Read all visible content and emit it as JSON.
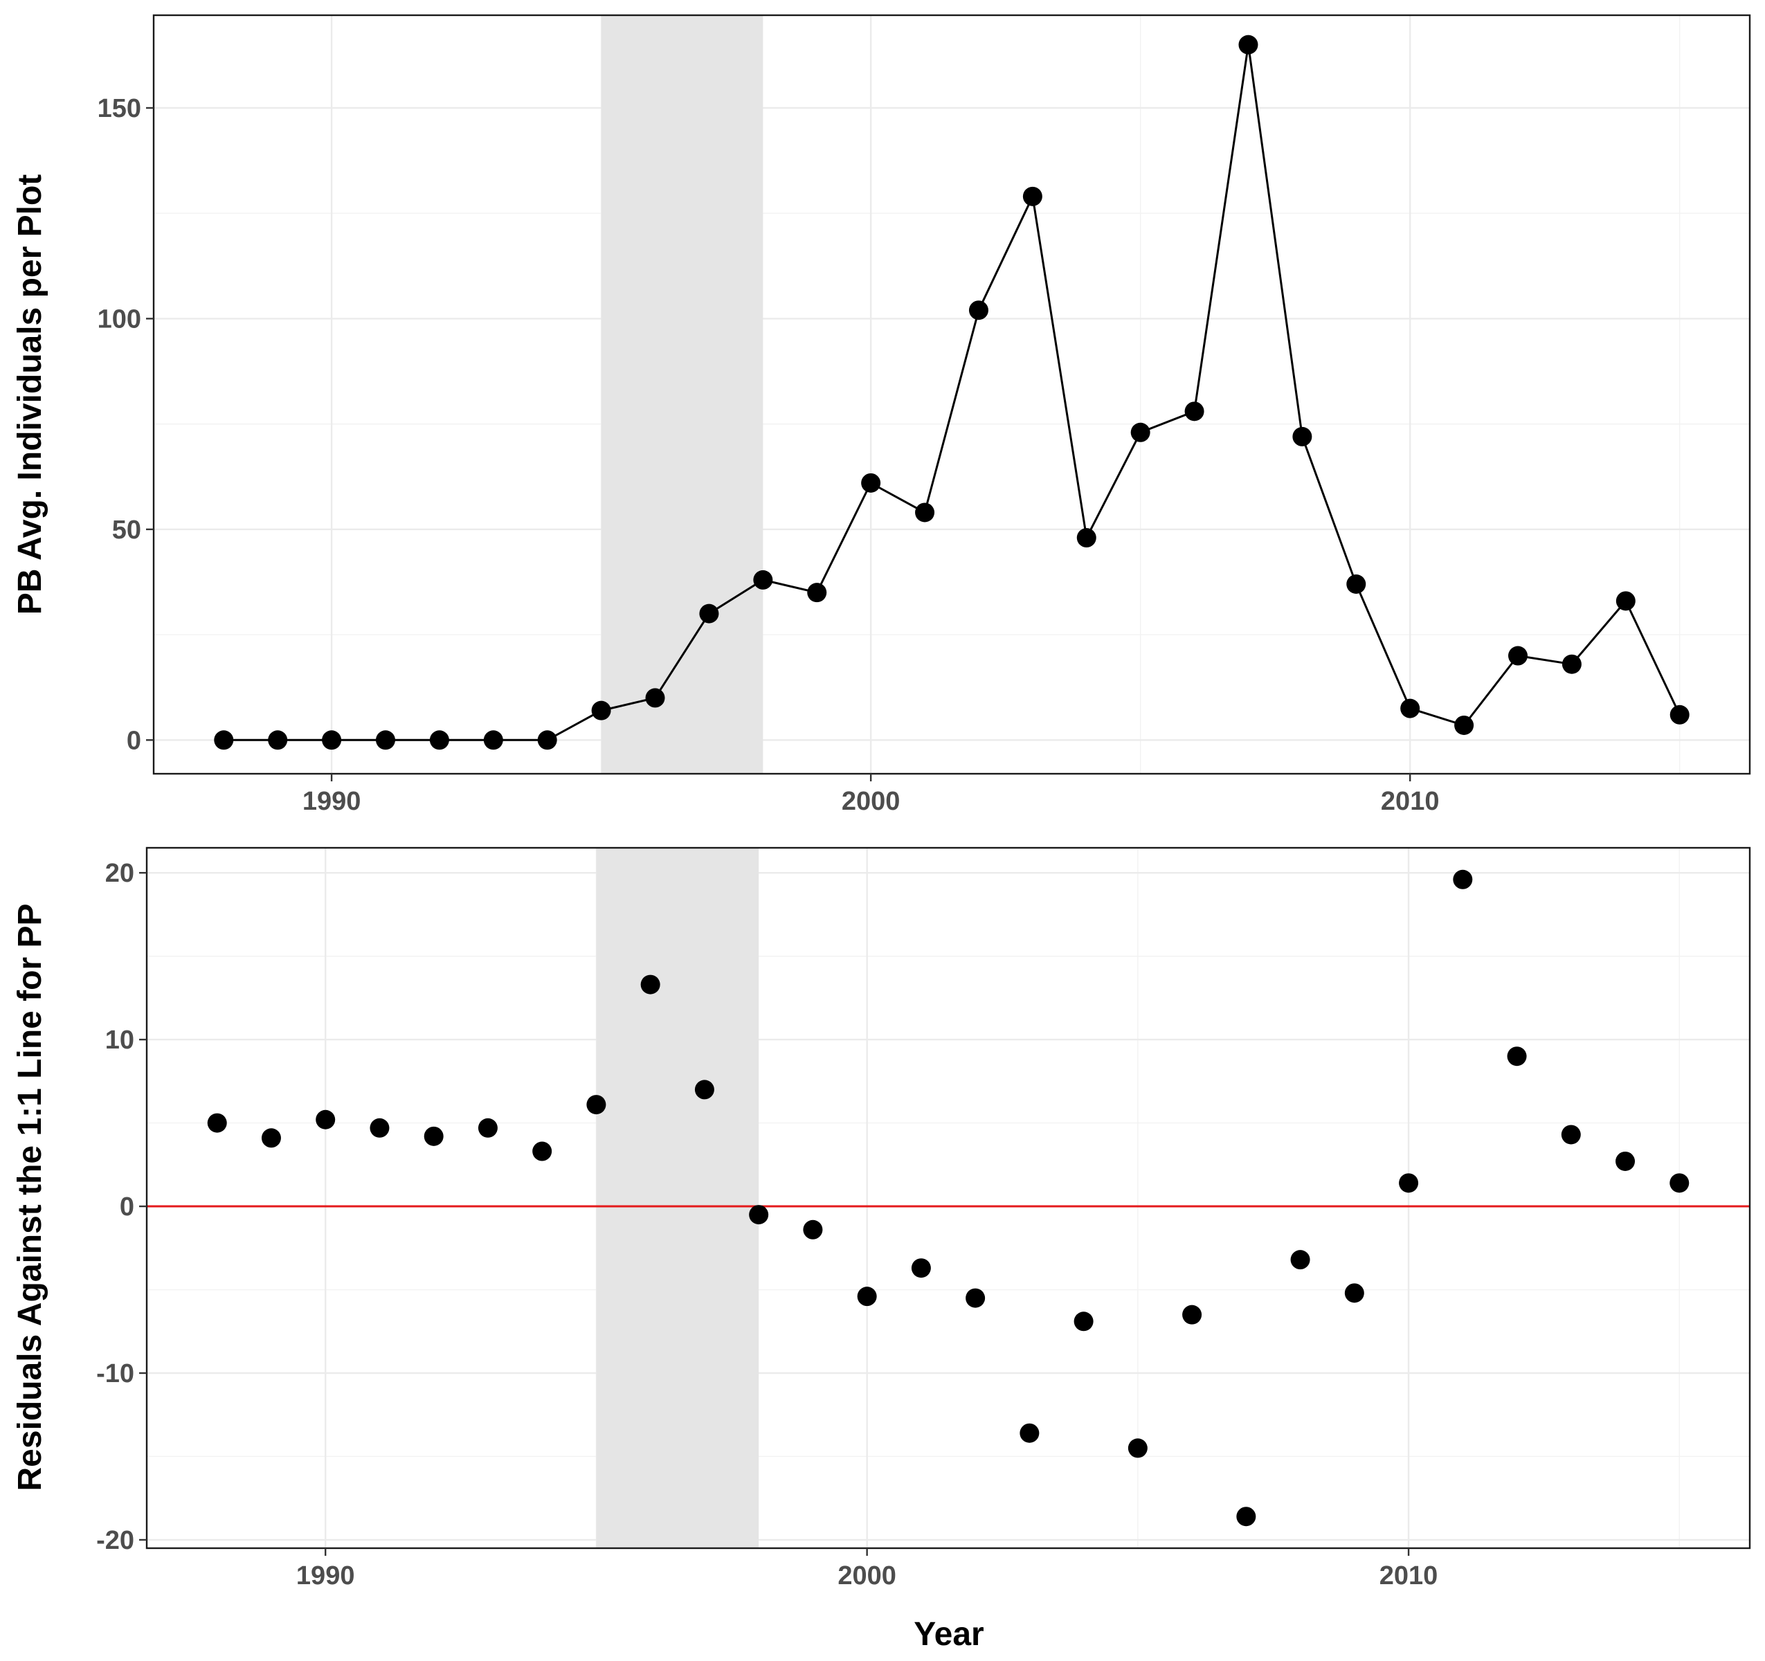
{
  "chart_data": [
    {
      "type": "line",
      "ylabel": "PB Avg. Individuals per Plot",
      "xlabel": "",
      "xlim": [
        1986.7,
        2016.3
      ],
      "ylim": [
        -8,
        172
      ],
      "x_ticks": [
        "1990",
        "2000",
        "2010"
      ],
      "y_ticks": [
        "0",
        "50",
        "100",
        "150"
      ],
      "shaded_region": [
        1995,
        1998
      ],
      "grid": true,
      "series": [
        {
          "x": [
            1988,
            1989,
            1990,
            1991,
            1992,
            1993,
            1994,
            1995,
            1996,
            1997,
            1998,
            1999,
            2000,
            2001,
            2002,
            2003,
            2004,
            2005,
            2006,
            2007,
            2008,
            2009,
            2010,
            2011,
            2012,
            2013,
            2014,
            2015
          ],
          "values": [
            0,
            0,
            0,
            0,
            0,
            0,
            0,
            7,
            10,
            30,
            38,
            35,
            61,
            54,
            102,
            129,
            48,
            73,
            78,
            165,
            72,
            37,
            7.5,
            3.5,
            20,
            18,
            33,
            6
          ]
        }
      ],
      "colors": {
        "line": "#000000",
        "point": "#000000",
        "shade": "#e5e5e5"
      }
    },
    {
      "type": "scatter",
      "ylabel": "Residuals Against the 1:1 Line for PP",
      "xlabel": "Year",
      "xlim": [
        1986.7,
        2016.3
      ],
      "ylim": [
        -20.5,
        21.5
      ],
      "x_ticks": [
        "1990",
        "2000",
        "2010"
      ],
      "y_ticks": [
        "-20",
        "-10",
        "0",
        "10",
        "20"
      ],
      "shaded_region": [
        1995,
        1998
      ],
      "reference_line_y": 0,
      "grid": true,
      "series": [
        {
          "x": [
            1988,
            1989,
            1990,
            1991,
            1992,
            1993,
            1994,
            1995,
            1996,
            1997,
            1998,
            1999,
            2000,
            2001,
            2002,
            2003,
            2004,
            2005,
            2006,
            2007,
            2008,
            2009,
            2010,
            2011,
            2012,
            2013,
            2014,
            2015
          ],
          "values": [
            5.0,
            4.1,
            5.2,
            4.7,
            4.2,
            4.7,
            3.3,
            6.1,
            13.3,
            7.0,
            -0.5,
            -1.4,
            -5.4,
            -3.7,
            -5.5,
            -13.6,
            -6.9,
            -14.5,
            -6.5,
            -18.6,
            -3.2,
            -5.2,
            1.4,
            19.6,
            9.0,
            4.3,
            2.7,
            1.4
          ]
        }
      ],
      "colors": {
        "point": "#000000",
        "shade": "#e5e5e5",
        "reference_line": "#e41a1c"
      }
    }
  ]
}
